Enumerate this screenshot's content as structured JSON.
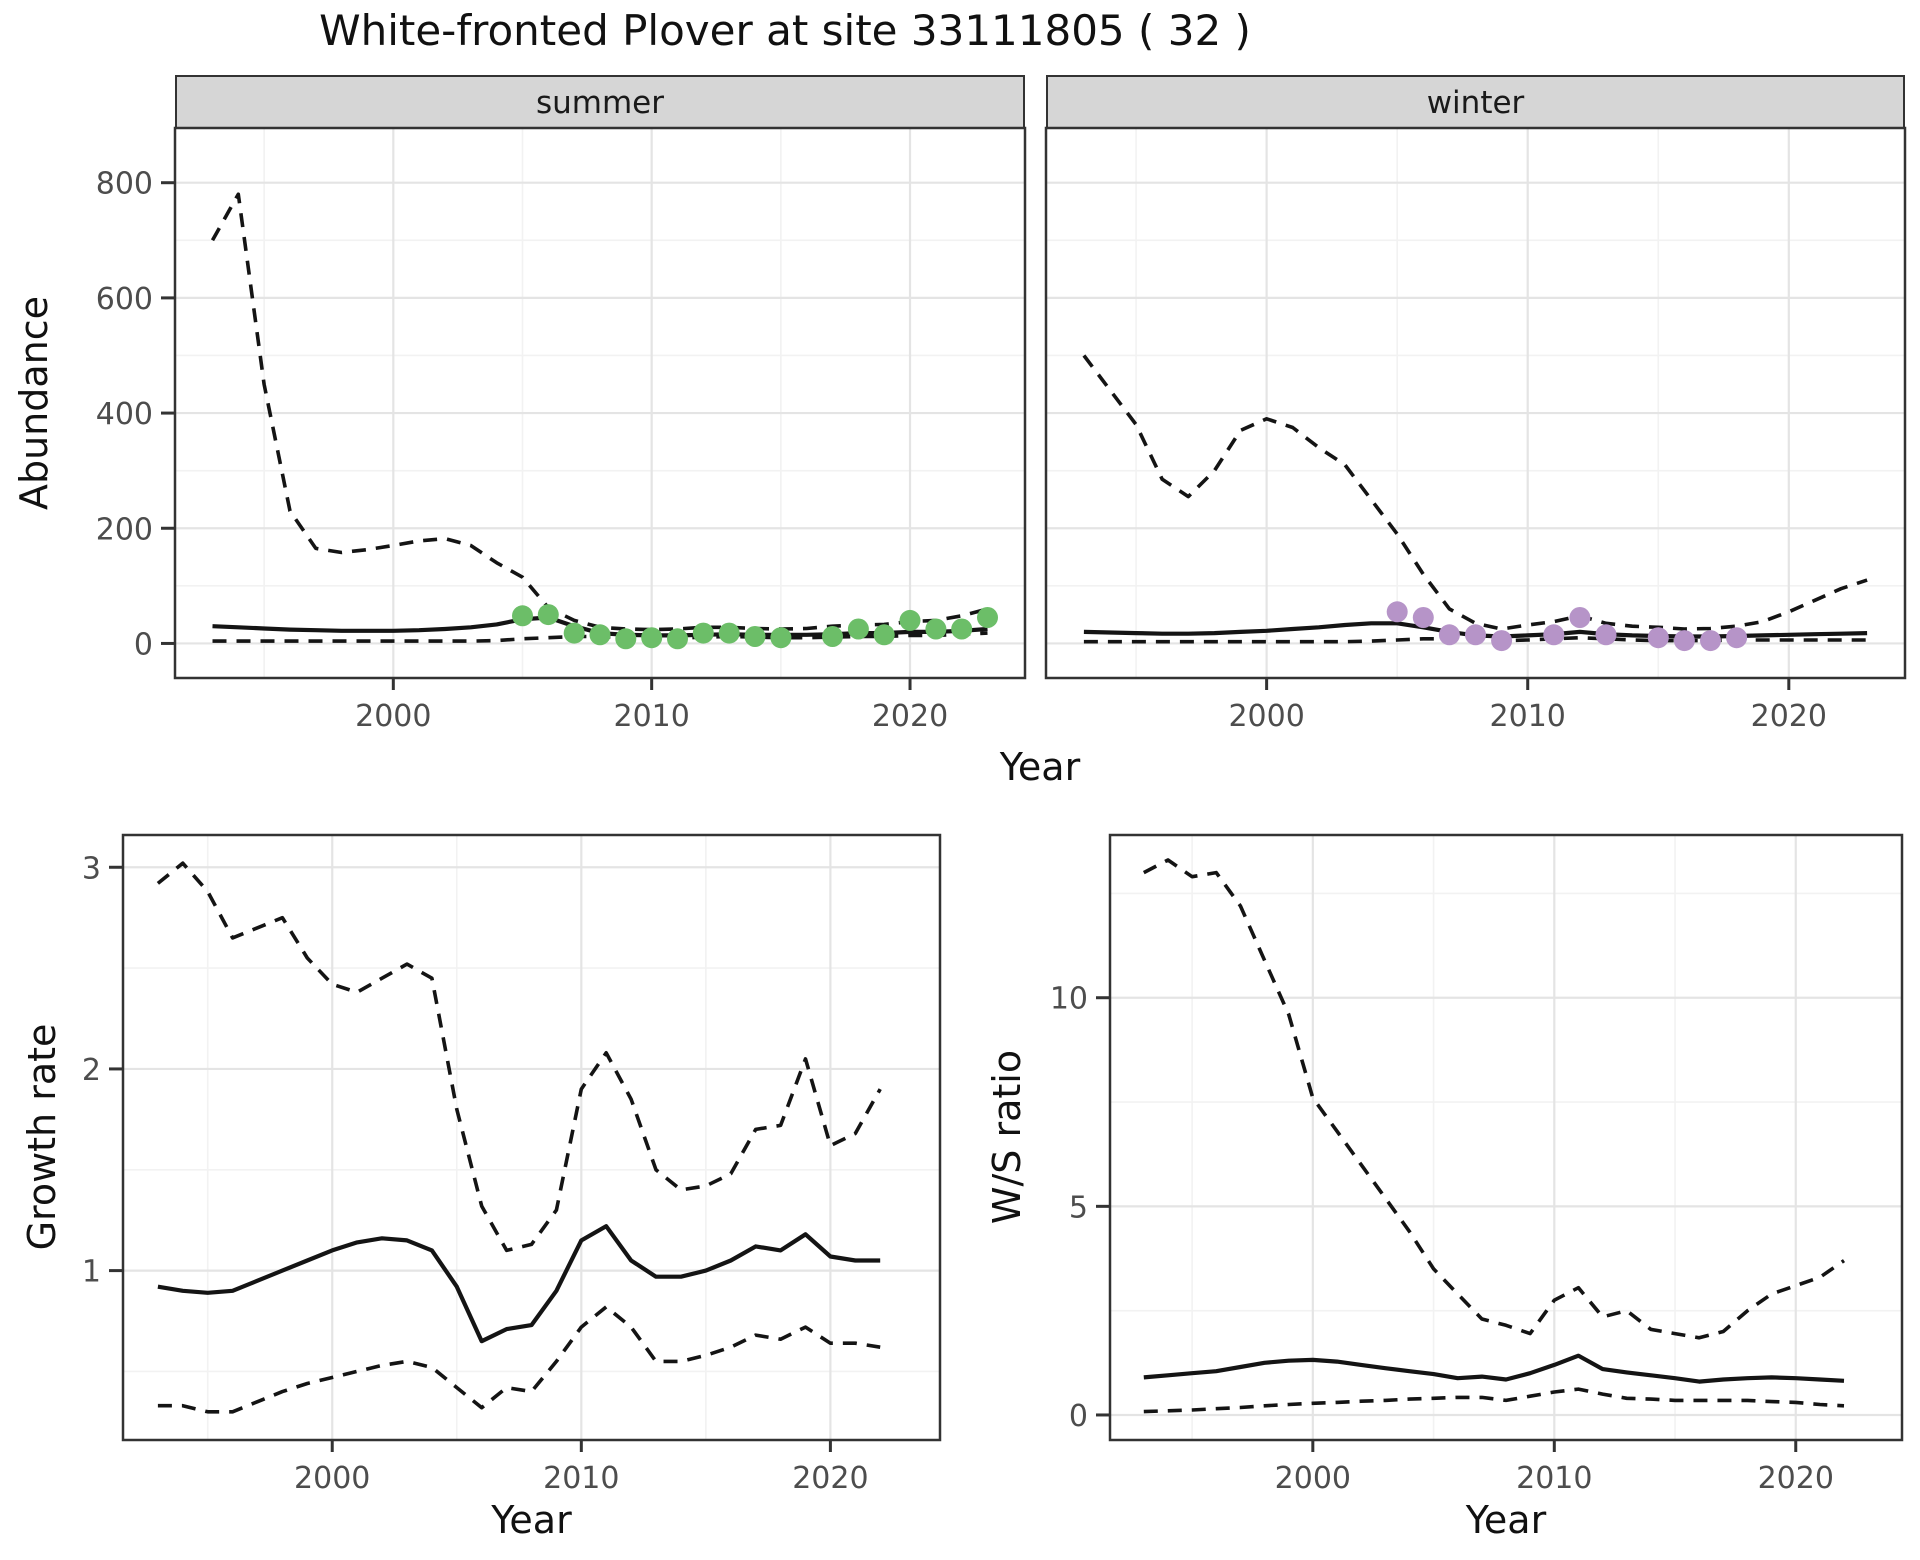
{
  "title": "White-fronted Plover at site 33111805 ( 32 )",
  "labels": {
    "abundance": "Abundance",
    "growth_rate": "Growth rate",
    "ws_ratio": "W/S ratio",
    "year": "Year"
  },
  "colors": {
    "summer_points": "#6cbe68",
    "winter_points": "#b694c8",
    "line": "#141414",
    "grid_major": "#e4e4e4",
    "grid_minor": "#f2f2f2",
    "panel_border": "#333333",
    "tick_mark": "#333333",
    "tick_text": "#4d4d4d",
    "strip_bg": "#d6d6d6",
    "panel_bg": "#ffffff"
  },
  "chart_data": [
    {
      "type": "line",
      "facet": "summer",
      "xlabel": "Year",
      "ylabel": "Abundance",
      "xlim": [
        1991.55,
        2024.45
      ],
      "ylim": [
        -60,
        895
      ],
      "xticks": [
        2000,
        2010,
        2020
      ],
      "yticks": [
        0,
        200,
        400,
        600,
        800
      ],
      "xminor": [
        1995,
        2005,
        2015
      ],
      "yminor": [
        100,
        300,
        500,
        700
      ],
      "x": [
        1993,
        1994,
        1995,
        1996,
        1997,
        1998,
        1999,
        2000,
        2001,
        2002,
        2003,
        2004,
        2005,
        2006,
        2007,
        2008,
        2009,
        2010,
        2011,
        2012,
        2013,
        2014,
        2015,
        2016,
        2017,
        2018,
        2019,
        2020,
        2021,
        2022,
        2023
      ],
      "series": [
        {
          "name": "upper credible limit",
          "style": "dashed",
          "values": [
            700,
            780,
            450,
            230,
            165,
            158,
            163,
            170,
            178,
            182,
            170,
            140,
            115,
            62,
            40,
            28,
            25,
            24,
            25,
            28,
            28,
            26,
            25,
            26,
            30,
            32,
            33,
            38,
            40,
            48,
            60
          ]
        },
        {
          "name": "median estimate",
          "style": "solid",
          "values": [
            30,
            28,
            26,
            24,
            23,
            22,
            22,
            22,
            23,
            25,
            28,
            33,
            42,
            45,
            30,
            18,
            15,
            14,
            14,
            15,
            16,
            15,
            15,
            15,
            16,
            18,
            18,
            20,
            20,
            22,
            25
          ]
        },
        {
          "name": "lower credible limit",
          "style": "dashed",
          "values": [
            4,
            4,
            4,
            4,
            4,
            4,
            4,
            4,
            4,
            4,
            4,
            5,
            8,
            10,
            12,
            12,
            10,
            9,
            9,
            11,
            12,
            11,
            10,
            10,
            11,
            12,
            12,
            14,
            14,
            16,
            18
          ]
        }
      ],
      "points": {
        "name": "observed summer counts",
        "color": "#6cbe68",
        "x": [
          2005,
          2006,
          2007,
          2008,
          2009,
          2010,
          2011,
          2012,
          2013,
          2014,
          2015,
          2017,
          2018,
          2019,
          2020,
          2021,
          2022,
          2023
        ],
        "y": [
          48,
          50,
          18,
          15,
          8,
          10,
          8,
          18,
          18,
          12,
          10,
          12,
          25,
          15,
          40,
          25,
          25,
          45
        ]
      }
    },
    {
      "type": "line",
      "facet": "winter",
      "xlabel": "Year",
      "ylabel": "Abundance",
      "xlim": [
        1991.55,
        2024.45
      ],
      "ylim": [
        -60,
        895
      ],
      "xticks": [
        2000,
        2010,
        2020
      ],
      "yticks": [
        0,
        200,
        400,
        600,
        800
      ],
      "xminor": [
        1995,
        2005,
        2015
      ],
      "yminor": [
        100,
        300,
        500,
        700
      ],
      "x": [
        1993,
        1994,
        1995,
        1996,
        1997,
        1998,
        1999,
        2000,
        2001,
        2002,
        2003,
        2004,
        2005,
        2006,
        2007,
        2008,
        2009,
        2010,
        2011,
        2012,
        2013,
        2014,
        2015,
        2016,
        2017,
        2018,
        2019,
        2020,
        2021,
        2022,
        2023
      ],
      "series": [
        {
          "name": "upper credible limit",
          "style": "dashed",
          "values": [
            500,
            440,
            380,
            285,
            255,
            300,
            370,
            390,
            375,
            340,
            310,
            250,
            190,
            120,
            60,
            35,
            25,
            32,
            38,
            48,
            35,
            30,
            28,
            25,
            26,
            30,
            38,
            55,
            75,
            95,
            110
          ]
        },
        {
          "name": "median estimate",
          "style": "solid",
          "values": [
            20,
            19,
            18,
            17,
            17,
            18,
            20,
            22,
            25,
            28,
            32,
            35,
            35,
            28,
            20,
            14,
            12,
            14,
            16,
            20,
            16,
            14,
            13,
            12,
            12,
            13,
            14,
            15,
            16,
            17,
            18
          ]
        },
        {
          "name": "lower credible limit",
          "style": "dashed",
          "values": [
            3,
            3,
            3,
            3,
            3,
            3,
            3,
            3,
            3,
            3,
            3,
            4,
            6,
            8,
            8,
            6,
            5,
            6,
            8,
            10,
            8,
            6,
            5,
            5,
            5,
            6,
            6,
            6,
            6,
            6,
            6
          ]
        }
      ],
      "points": {
        "name": "observed winter counts",
        "color": "#b694c8",
        "x": [
          2005,
          2006,
          2007,
          2008,
          2009,
          2011,
          2012,
          2013,
          2015,
          2016,
          2017,
          2018
        ],
        "y": [
          55,
          45,
          15,
          15,
          5,
          15,
          45,
          15,
          10,
          5,
          5,
          10
        ]
      }
    },
    {
      "type": "line",
      "facet": "",
      "xlabel": "Year",
      "ylabel": "Growth rate",
      "xlim": [
        1991.6,
        2024.4
      ],
      "ylim": [
        0.16,
        3.16
      ],
      "xticks": [
        2000,
        2010,
        2020
      ],
      "yticks": [
        1,
        2,
        3
      ],
      "xminor": [
        1995,
        2005,
        2015
      ],
      "yminor": [
        0.5,
        1.5,
        2.5
      ],
      "x": [
        1993,
        1994,
        1995,
        1996,
        1997,
        1998,
        1999,
        2000,
        2001,
        2002,
        2003,
        2004,
        2005,
        2006,
        2007,
        2008,
        2009,
        2010,
        2011,
        2012,
        2013,
        2014,
        2015,
        2016,
        2017,
        2018,
        2019,
        2020,
        2021,
        2022
      ],
      "series": [
        {
          "name": "upper credible limit",
          "style": "dashed",
          "values": [
            2.92,
            3.02,
            2.88,
            2.65,
            2.7,
            2.75,
            2.55,
            2.42,
            2.38,
            2.45,
            2.52,
            2.45,
            1.8,
            1.32,
            1.1,
            1.13,
            1.3,
            1.9,
            2.08,
            1.85,
            1.5,
            1.4,
            1.42,
            1.48,
            1.7,
            1.72,
            2.05,
            1.62,
            1.68,
            1.9
          ]
        },
        {
          "name": "median estimate",
          "style": "solid",
          "values": [
            0.92,
            0.9,
            0.89,
            0.9,
            0.95,
            1.0,
            1.05,
            1.1,
            1.14,
            1.16,
            1.15,
            1.1,
            0.92,
            0.65,
            0.71,
            0.73,
            0.9,
            1.15,
            1.22,
            1.05,
            0.97,
            0.97,
            1.0,
            1.05,
            1.12,
            1.1,
            1.18,
            1.07,
            1.05,
            1.05
          ]
        },
        {
          "name": "lower credible limit",
          "style": "dashed",
          "values": [
            0.33,
            0.33,
            0.3,
            0.3,
            0.35,
            0.4,
            0.44,
            0.47,
            0.5,
            0.53,
            0.55,
            0.52,
            0.42,
            0.32,
            0.42,
            0.4,
            0.55,
            0.72,
            0.82,
            0.72,
            0.55,
            0.55,
            0.58,
            0.62,
            0.68,
            0.66,
            0.72,
            0.64,
            0.64,
            0.62
          ]
        }
      ],
      "points": null
    },
    {
      "type": "line",
      "facet": "",
      "xlabel": "Year",
      "ylabel": "W/S ratio",
      "xlim": [
        1991.6,
        2024.4
      ],
      "ylim": [
        -0.6,
        13.9
      ],
      "xticks": [
        2000,
        2010,
        2020
      ],
      "yticks": [
        0,
        5,
        10
      ],
      "xminor": [
        1995,
        2005,
        2015
      ],
      "yminor": [
        2.5,
        7.5,
        12.5
      ],
      "x": [
        1993,
        1994,
        1995,
        1996,
        1997,
        1998,
        1999,
        2000,
        2001,
        2002,
        2003,
        2004,
        2005,
        2006,
        2007,
        2008,
        2009,
        2010,
        2011,
        2012,
        2013,
        2014,
        2015,
        2016,
        2017,
        2018,
        2019,
        2020,
        2021,
        2022
      ],
      "series": [
        {
          "name": "upper credible limit",
          "style": "dashed",
          "values": [
            13.0,
            13.3,
            12.9,
            13.0,
            12.2,
            10.9,
            9.6,
            7.6,
            6.8,
            6.0,
            5.2,
            4.4,
            3.5,
            2.9,
            2.3,
            2.15,
            1.95,
            2.75,
            3.05,
            2.35,
            2.5,
            2.05,
            1.95,
            1.85,
            2.0,
            2.5,
            2.9,
            3.1,
            3.3,
            3.7
          ]
        },
        {
          "name": "median estimate",
          "style": "solid",
          "values": [
            0.9,
            0.95,
            1.0,
            1.05,
            1.15,
            1.25,
            1.3,
            1.32,
            1.28,
            1.2,
            1.12,
            1.05,
            0.98,
            0.88,
            0.92,
            0.85,
            1.0,
            1.2,
            1.42,
            1.1,
            1.02,
            0.95,
            0.88,
            0.8,
            0.85,
            0.88,
            0.9,
            0.88,
            0.85,
            0.82
          ]
        },
        {
          "name": "lower credible limit",
          "style": "dashed",
          "values": [
            0.08,
            0.1,
            0.12,
            0.15,
            0.18,
            0.22,
            0.25,
            0.28,
            0.3,
            0.33,
            0.35,
            0.38,
            0.4,
            0.42,
            0.42,
            0.35,
            0.45,
            0.55,
            0.62,
            0.5,
            0.4,
            0.38,
            0.35,
            0.35,
            0.35,
            0.35,
            0.32,
            0.3,
            0.25,
            0.22
          ]
        }
      ],
      "points": null
    }
  ]
}
